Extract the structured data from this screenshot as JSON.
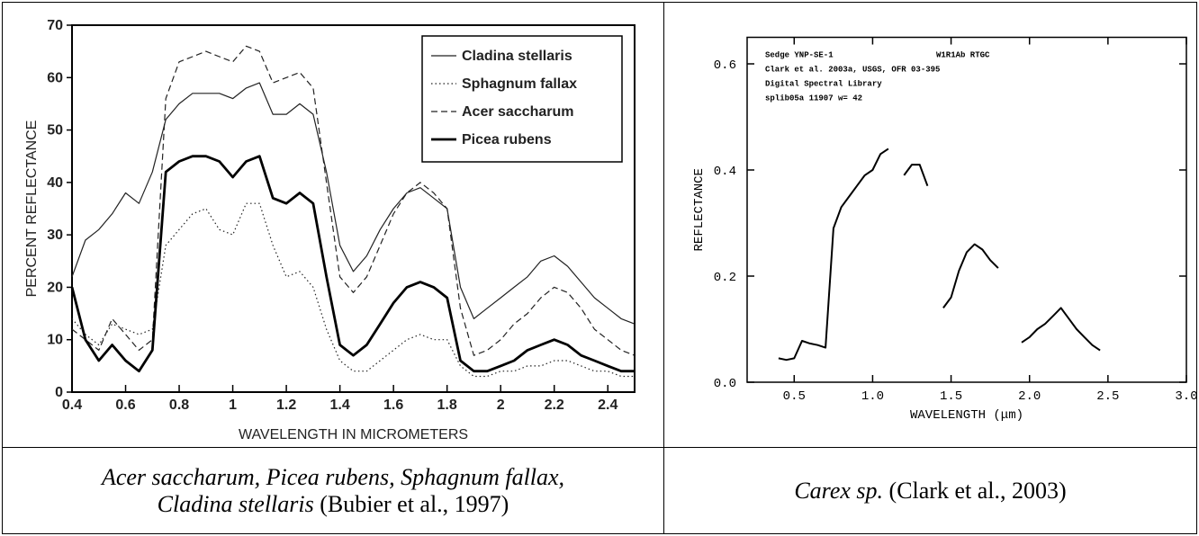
{
  "chart_data": [
    {
      "type": "line",
      "y_label": "PERCENT REFLECTANCE",
      "x_label": "WAVELENGTH IN MICROMETERS",
      "x": [
        0.4,
        0.45,
        0.5,
        0.55,
        0.6,
        0.65,
        0.7,
        0.75,
        0.8,
        0.85,
        0.9,
        0.95,
        1.0,
        1.05,
        1.1,
        1.15,
        1.2,
        1.25,
        1.3,
        1.35,
        1.4,
        1.45,
        1.5,
        1.55,
        1.6,
        1.65,
        1.7,
        1.75,
        1.8,
        1.85,
        1.9,
        1.95,
        2.0,
        2.05,
        2.1,
        2.15,
        2.2,
        2.25,
        2.3,
        2.35,
        2.4,
        2.45,
        2.5
      ],
      "series": [
        {
          "name": "Cladina stellaris",
          "color": "#222222",
          "line_style": "solid",
          "line_width": 1.2,
          "values": [
            22,
            29,
            31,
            34,
            38,
            36,
            42,
            52,
            55,
            57,
            57,
            57,
            56,
            58,
            59,
            53,
            53,
            55,
            53,
            42,
            28,
            23,
            26,
            31,
            35,
            38,
            39,
            37,
            35,
            20,
            14,
            16,
            18,
            20,
            22,
            25,
            26,
            24,
            21,
            18,
            16,
            14,
            13
          ]
        },
        {
          "name": "Sphagnum fallax",
          "color": "#222222",
          "line_style": "dotted",
          "line_width": 1.2,
          "values": [
            14,
            11,
            9,
            13,
            12,
            11,
            12,
            28,
            31,
            34,
            35,
            31,
            30,
            36,
            36,
            28,
            22,
            23,
            20,
            12,
            6,
            4,
            4,
            6,
            8,
            10,
            11,
            10,
            10,
            5,
            3,
            3,
            4,
            4,
            5,
            5,
            6,
            6,
            5,
            4,
            4,
            3,
            3
          ]
        },
        {
          "name": "Acer saccharum",
          "color": "#222222",
          "line_style": "dashed",
          "line_width": 1.2,
          "values": [
            12,
            10,
            8,
            14,
            11,
            8,
            10,
            56,
            63,
            64,
            65,
            64,
            63,
            66,
            65,
            59,
            60,
            61,
            58,
            40,
            22,
            19,
            22,
            28,
            34,
            38,
            40,
            38,
            35,
            16,
            7,
            8,
            10,
            13,
            15,
            18,
            20,
            19,
            16,
            12,
            10,
            8,
            7
          ]
        },
        {
          "name": "Picea rubens",
          "color": "#000000",
          "line_style": "solid",
          "line_width": 2.8,
          "values": [
            20,
            10,
            6,
            9,
            6,
            4,
            8,
            42,
            44,
            45,
            45,
            44,
            41,
            44,
            45,
            37,
            36,
            38,
            36,
            22,
            9,
            7,
            9,
            13,
            17,
            20,
            21,
            20,
            18,
            6,
            4,
            4,
            5,
            6,
            8,
            9,
            10,
            9,
            7,
            6,
            5,
            4,
            4
          ]
        }
      ],
      "xlim": [
        0.4,
        2.5
      ],
      "xticks": [
        0.4,
        0.6,
        0.8,
        1,
        1.2,
        1.4,
        1.6,
        1.8,
        2,
        2.2,
        2.4
      ],
      "ylim": [
        0,
        70
      ],
      "yticks": [
        0,
        10,
        20,
        30,
        40,
        50,
        60,
        70
      ],
      "legend": "upper right"
    },
    {
      "type": "line",
      "annotations": [
        "Sedge YNP-SE-1",
        "W1R1Ab RTGC",
        "Clark et al. 2003a, USGS, OFR 03-395",
        "Digital Spectral Library",
        "splib05a 11907 w= 42"
      ],
      "y_label": "REFLECTANCE",
      "x_label": "WAVELENGTH (μm)",
      "x": [
        0.4,
        0.45,
        0.5,
        0.55,
        0.6,
        0.65,
        0.7,
        0.75,
        0.8,
        0.85,
        0.9,
        0.95,
        1.0,
        1.05,
        1.1,
        1.15,
        1.2,
        1.25,
        1.3,
        1.35,
        1.4,
        1.45,
        1.5,
        1.55,
        1.6,
        1.65,
        1.7,
        1.75,
        1.8,
        1.85,
        1.9,
        1.95,
        2.0,
        2.05,
        2.1,
        2.15,
        2.2,
        2.25,
        2.3,
        2.35,
        2.4,
        2.45
      ],
      "series": [
        {
          "color": "#000000",
          "line_style": "solid",
          "line_width": 2,
          "values": [
            0.045,
            0.042,
            0.045,
            0.078,
            0.073,
            0.07,
            0.065,
            0.29,
            0.33,
            0.35,
            0.37,
            0.39,
            0.4,
            0.43,
            0.44,
            null,
            0.39,
            0.41,
            0.41,
            0.37,
            null,
            0.14,
            0.16,
            0.21,
            0.245,
            0.26,
            0.25,
            0.23,
            0.215,
            null,
            null,
            0.075,
            0.085,
            0.1,
            0.11,
            0.125,
            0.14,
            0.12,
            0.1,
            0.085,
            0.07,
            0.06
          ]
        }
      ],
      "xlim": [
        0.2,
        3.0
      ],
      "xticks": [
        0.5,
        {
          "value": 1,
          "label": "1.0"
        },
        1.5,
        {
          "value": 2,
          "label": "2.0"
        },
        2.5,
        {
          "value": 3,
          "label": "3.0"
        }
      ],
      "ylim": [
        0,
        0.65
      ],
      "yticks": [
        {
          "value": 0,
          "label": "0.0"
        },
        0.2,
        0.4,
        0.6
      ]
    }
  ],
  "captions": [
    {
      "italic": "Acer saccharum, Picea rubens, Sphagnum fallax, Cladina stellaris",
      "plain": "(Bubier et al., 1997)"
    },
    {
      "italic": "Carex sp.",
      "plain": "(Clark et al., 2003)"
    }
  ]
}
